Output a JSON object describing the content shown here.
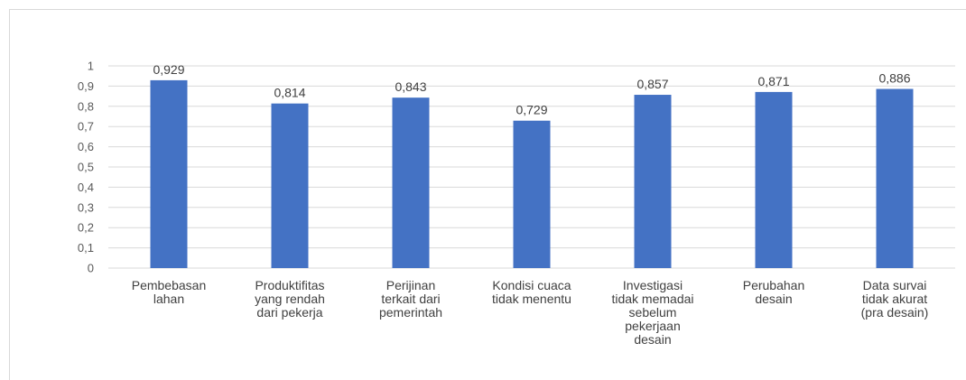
{
  "chart_data": {
    "type": "bar",
    "categories": [
      [
        "Pembebasan",
        "lahan"
      ],
      [
        "Produktifitas",
        "yang rendah",
        "dari pekerja"
      ],
      [
        "Perijinan",
        "terkait dari",
        "pemerintah"
      ],
      [
        "Kondisi cuaca",
        "tidak menentu"
      ],
      [
        "Investigasi",
        "tidak memadai",
        "sebelum",
        "pekerjaan",
        "desain"
      ],
      [
        "Perubahan",
        "desain"
      ],
      [
        "Data survai",
        "tidak akurat",
        "(pra desain)"
      ]
    ],
    "values": [
      0.929,
      0.814,
      0.843,
      0.729,
      0.857,
      0.871,
      0.886
    ],
    "data_labels": [
      "0,929",
      "0,814",
      "0,843",
      "0,729",
      "0,857",
      "0,871",
      "0,886"
    ],
    "ylim": [
      0,
      1
    ],
    "yticks": [
      0,
      0.1,
      0.2,
      0.3,
      0.4,
      0.5,
      0.6,
      0.7,
      0.8,
      0.9,
      1
    ],
    "ytick_labels": [
      "0",
      "0,1",
      "0,2",
      "0,3",
      "0,4",
      "0,5",
      "0,6",
      "0,7",
      "0,8",
      "0,9",
      "1"
    ],
    "grid": true,
    "bar_color": "#4472c4",
    "grid_color": "#d9d9d9",
    "title": "",
    "xlabel": "",
    "ylabel": ""
  }
}
